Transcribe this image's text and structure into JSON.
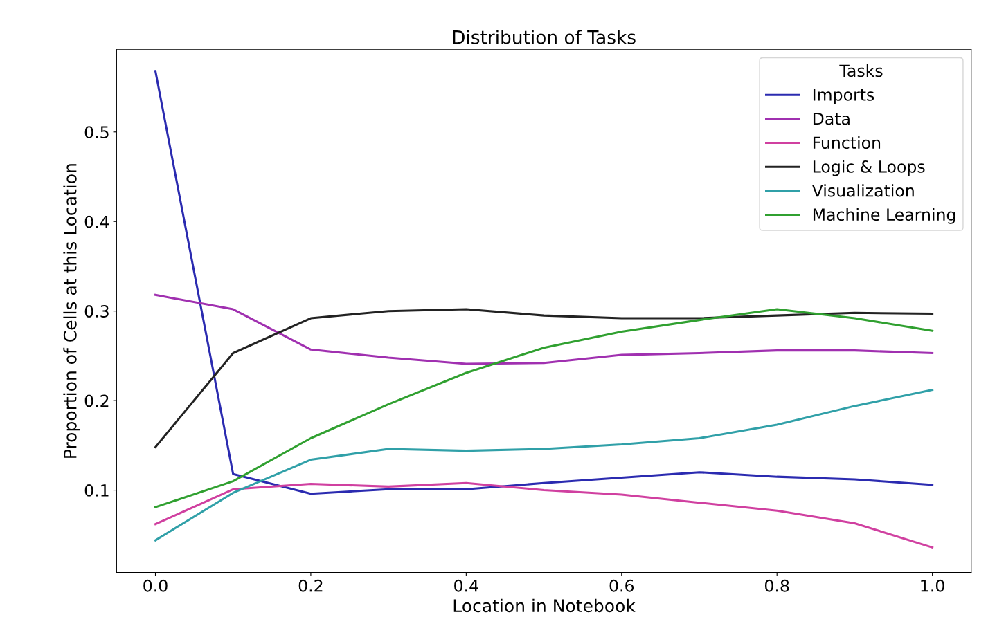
{
  "chart_data": {
    "type": "line",
    "title": "Distribution of Tasks",
    "xlabel": "Location in Notebook",
    "ylabel": "Proportion of Cells at this Location",
    "legend_title": "Tasks",
    "legend": "top right",
    "grid": false,
    "marker": "none",
    "line_style": "solid",
    "x": [
      0.0,
      0.1,
      0.2,
      0.3,
      0.4,
      0.5,
      0.6,
      0.7,
      0.8,
      0.9,
      1.0
    ],
    "xlim": [
      -0.05,
      1.05
    ],
    "xticks": [
      {
        "value": 0,
        "label": "0.0"
      },
      0.2,
      0.4,
      0.6,
      0.8,
      {
        "value": 1,
        "label": "1.0"
      }
    ],
    "ylim": [
      0.008,
      0.592
    ],
    "yticks": [
      0.1,
      0.2,
      0.3,
      0.4,
      0.5
    ],
    "series": [
      {
        "name": "Imports",
        "color": "#2b2bb0",
        "values": [
          0.568,
          0.118,
          0.096,
          0.101,
          0.101,
          0.108,
          0.114,
          0.12,
          0.115,
          0.112,
          0.106
        ]
      },
      {
        "name": "Data",
        "color": "#a030b0",
        "values": [
          0.318,
          0.302,
          0.257,
          0.248,
          0.241,
          0.242,
          0.251,
          0.253,
          0.256,
          0.256,
          0.253
        ]
      },
      {
        "name": "Function",
        "color": "#d040a0",
        "values": [
          0.062,
          0.101,
          0.107,
          0.104,
          0.108,
          0.1,
          0.095,
          0.086,
          0.077,
          0.063,
          0.036
        ]
      },
      {
        "name": "Logic & Loops",
        "color": "#222222",
        "values": [
          0.148,
          0.253,
          0.292,
          0.3,
          0.302,
          0.295,
          0.292,
          0.292,
          0.295,
          0.298,
          0.297
        ]
      },
      {
        "name": "Visualization",
        "color": "#30a0a8",
        "values": [
          0.044,
          0.097,
          0.134,
          0.146,
          0.144,
          0.146,
          0.151,
          0.158,
          0.173,
          0.194,
          0.212
        ]
      },
      {
        "name": "Machine Learning",
        "color": "#30a030",
        "values": [
          0.081,
          0.11,
          0.158,
          0.196,
          0.231,
          0.259,
          0.277,
          0.29,
          0.302,
          0.292,
          0.278
        ]
      }
    ]
  }
}
